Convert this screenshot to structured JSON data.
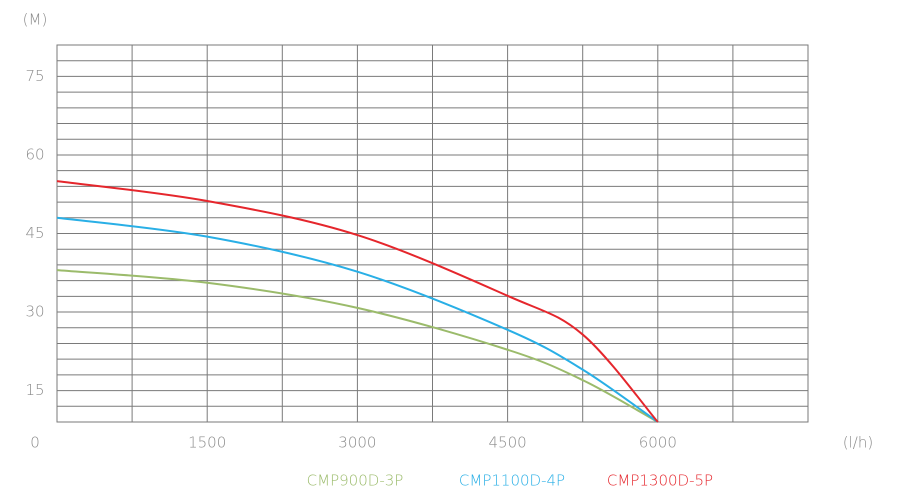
{
  "chart_data": {
    "type": "line",
    "y_label": "(M)",
    "x_label": "(l/h)",
    "x": [
      0,
      1500,
      3000,
      4500,
      5250,
      6000
    ],
    "series": [
      {
        "name": "CMP900D-3P",
        "color": "#9bbb6b",
        "values": [
          38,
          35.6,
          30.8,
          22.8,
          17,
          9
        ]
      },
      {
        "name": "CMP1100D-4P",
        "color": "#29afe6",
        "values": [
          48,
          44.4,
          37.7,
          26.6,
          19,
          9
        ]
      },
      {
        "name": "CMP1300D-5P",
        "color": "#e5262c",
        "values": [
          55,
          51.2,
          44.7,
          33.1,
          25.7,
          9
        ]
      }
    ],
    "xlim": [
      0,
      7500
    ],
    "xticks": [
      0,
      1500,
      3000,
      4500,
      6000
    ],
    "ylim": [
      9,
      81
    ],
    "yticks": [
      15,
      30,
      45,
      60,
      75
    ],
    "grid": true
  }
}
